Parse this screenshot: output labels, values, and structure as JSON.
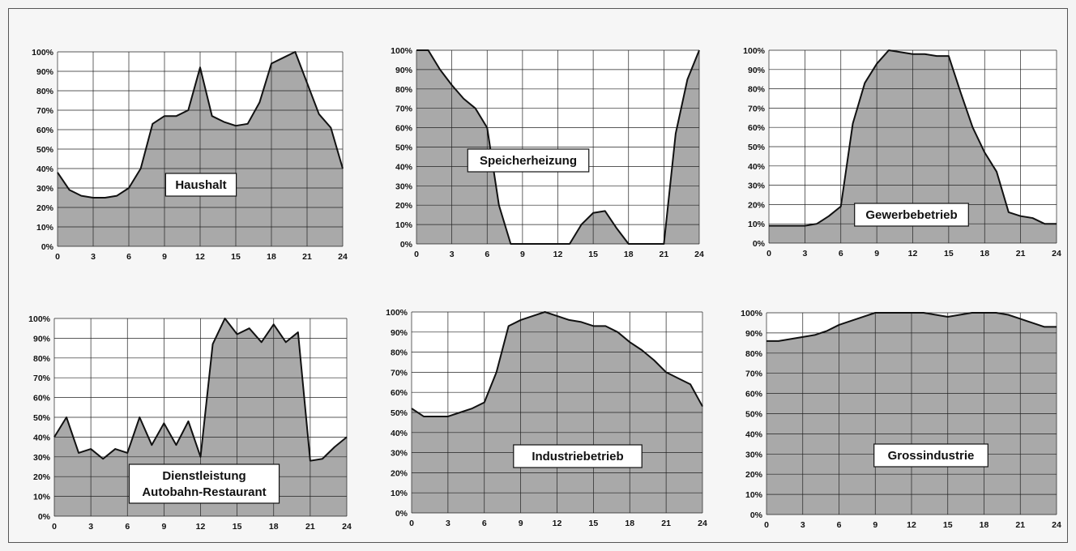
{
  "chart_data": [
    {
      "type": "area",
      "labels": [
        "Haushalt"
      ],
      "x": [
        0,
        1,
        2,
        3,
        4,
        5,
        6,
        7,
        8,
        9,
        10,
        11,
        12,
        13,
        14,
        15,
        16,
        17,
        18,
        19,
        20,
        21,
        22,
        23,
        24
      ],
      "values": [
        38,
        29,
        26,
        25,
        25,
        26,
        30,
        40,
        63,
        67,
        67,
        70,
        92,
        67,
        64,
        62,
        63,
        74,
        94,
        97,
        100,
        84,
        68,
        61,
        40
      ],
      "xticks": [
        "0",
        "3",
        "6",
        "9",
        "12",
        "15",
        "18",
        "21",
        "24"
      ],
      "yticks": [
        "0%",
        "10%",
        "20%",
        "30%",
        "40%",
        "50%",
        "60%",
        "70%",
        "80%",
        "90%",
        "100%"
      ],
      "xlim": [
        0,
        24
      ],
      "ylim": [
        0,
        100
      ],
      "grid": true
    },
    {
      "type": "area",
      "labels": [
        "Speicherheizung"
      ],
      "x": [
        0,
        1,
        2,
        3,
        4,
        5,
        6,
        7,
        8,
        9,
        10,
        11,
        12,
        13,
        14,
        15,
        16,
        17,
        18,
        19,
        20,
        21,
        22,
        23,
        24
      ],
      "values": [
        100,
        100,
        90,
        82,
        75,
        70,
        60,
        20,
        0,
        0,
        0,
        0,
        0,
        0,
        10,
        16,
        17,
        8,
        0,
        0,
        0,
        0,
        57,
        85,
        100
      ],
      "xticks": [
        "0",
        "3",
        "6",
        "9",
        "12",
        "15",
        "18",
        "21",
        "24"
      ],
      "yticks": [
        "0%",
        "10%",
        "20%",
        "30%",
        "40%",
        "50%",
        "60%",
        "70%",
        "80%",
        "90%",
        "100%"
      ],
      "xlim": [
        0,
        24
      ],
      "ylim": [
        0,
        100
      ],
      "grid": true
    },
    {
      "type": "area",
      "labels": [
        "Gewerbebetrieb"
      ],
      "x": [
        0,
        1,
        2,
        3,
        4,
        5,
        6,
        7,
        8,
        9,
        10,
        11,
        12,
        13,
        14,
        15,
        16,
        17,
        18,
        19,
        20,
        21,
        22,
        23,
        24
      ],
      "values": [
        9,
        9,
        9,
        9,
        10,
        14,
        19,
        62,
        83,
        93,
        100,
        99,
        98,
        98,
        97,
        97,
        78,
        60,
        47,
        37,
        16,
        14,
        13,
        10,
        10
      ],
      "xticks": [
        "0",
        "3",
        "6",
        "9",
        "12",
        "15",
        "18",
        "21",
        "24"
      ],
      "yticks": [
        "0%",
        "10%",
        "20%",
        "30%",
        "40%",
        "50%",
        "60%",
        "70%",
        "80%",
        "90%",
        "100%"
      ],
      "xlim": [
        0,
        24
      ],
      "ylim": [
        0,
        100
      ],
      "grid": true
    },
    {
      "type": "area",
      "labels": [
        "Dienstleistung",
        "Autobahn-Restaurant"
      ],
      "x": [
        0,
        1,
        2,
        3,
        4,
        5,
        6,
        7,
        8,
        9,
        10,
        11,
        12,
        13,
        14,
        15,
        16,
        17,
        18,
        19,
        20,
        21,
        22,
        23,
        24
      ],
      "values": [
        40,
        50,
        32,
        34,
        29,
        34,
        32,
        50,
        36,
        47,
        36,
        48,
        30,
        87,
        100,
        92,
        95,
        88,
        97,
        88,
        93,
        28,
        29,
        35,
        40
      ],
      "xticks": [
        "0",
        "3",
        "6",
        "9",
        "12",
        "15",
        "18",
        "21",
        "24"
      ],
      "yticks": [
        "0%",
        "10%",
        "20%",
        "30%",
        "40%",
        "50%",
        "60%",
        "70%",
        "80%",
        "90%",
        "100%"
      ],
      "xlim": [
        0,
        24
      ],
      "ylim": [
        0,
        100
      ],
      "grid": true
    },
    {
      "type": "area",
      "labels": [
        "Industriebetrieb"
      ],
      "x": [
        0,
        1,
        2,
        3,
        4,
        5,
        6,
        7,
        8,
        9,
        10,
        11,
        12,
        13,
        14,
        15,
        16,
        17,
        18,
        19,
        20,
        21,
        22,
        23,
        24
      ],
      "values": [
        52,
        48,
        48,
        48,
        50,
        52,
        55,
        70,
        93,
        96,
        98,
        100,
        98,
        96,
        95,
        93,
        93,
        90,
        85,
        81,
        76,
        70,
        67,
        64,
        53
      ],
      "xticks": [
        "0",
        "3",
        "6",
        "9",
        "12",
        "15",
        "18",
        "21",
        "24"
      ],
      "yticks": [
        "0%",
        "10%",
        "20%",
        "30%",
        "40%",
        "50%",
        "60%",
        "70%",
        "80%",
        "90%",
        "100%"
      ],
      "xlim": [
        0,
        24
      ],
      "ylim": [
        0,
        100
      ],
      "grid": true
    },
    {
      "type": "area",
      "labels": [
        "Grossindustrie"
      ],
      "x": [
        0,
        1,
        2,
        3,
        4,
        5,
        6,
        7,
        8,
        9,
        10,
        11,
        12,
        13,
        14,
        15,
        16,
        17,
        18,
        19,
        20,
        21,
        22,
        23,
        24
      ],
      "values": [
        86,
        86,
        87,
        88,
        89,
        91,
        94,
        96,
        98,
        100,
        100,
        100,
        100,
        100,
        99,
        98,
        99,
        100,
        100,
        100,
        99,
        97,
        95,
        93,
        93
      ],
      "xticks": [
        "0",
        "3",
        "6",
        "9",
        "12",
        "15",
        "18",
        "21",
        "24"
      ],
      "yticks": [
        "0%",
        "10%",
        "20%",
        "30%",
        "40%",
        "50%",
        "60%",
        "70%",
        "80%",
        "90%",
        "100%"
      ],
      "xlim": [
        0,
        24
      ],
      "ylim": [
        0,
        100
      ],
      "grid": true
    }
  ]
}
